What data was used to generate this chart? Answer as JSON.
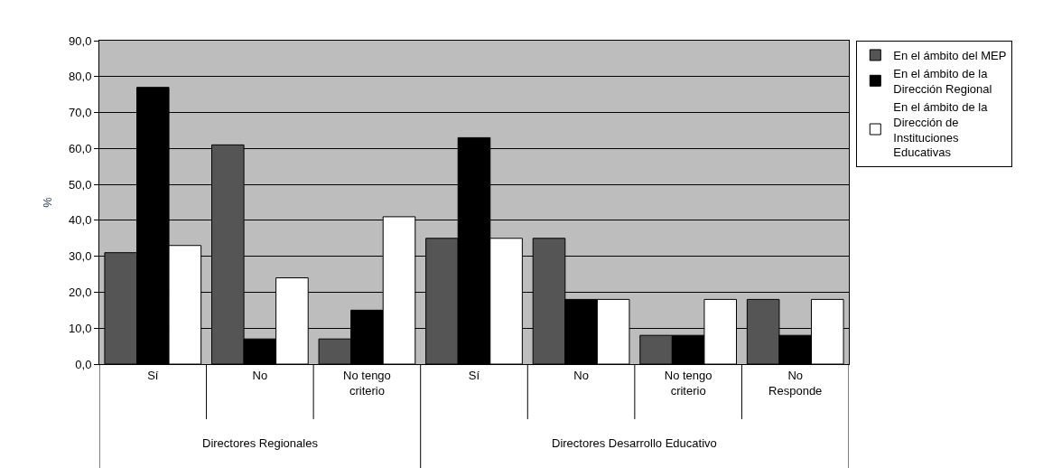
{
  "chart_data": {
    "type": "bar",
    "ylabel": "%",
    "categories": [
      "Sí",
      "No",
      "No tengo criterio",
      "Sí",
      "No",
      "No tengo criterio",
      "No Responde"
    ],
    "series": [
      {
        "name": "En el ámbito del MEP",
        "color": "#555555",
        "values": [
          31,
          61,
          7,
          35,
          35,
          8,
          18
        ]
      },
      {
        "name": "En el ámbito de la Dirección Regional",
        "color": "#000000",
        "values": [
          77,
          7,
          15,
          63,
          18,
          8,
          8
        ]
      },
      {
        "name": "En el ámbito de la Dirección de Instituciones Educativas",
        "color": "#ffffff",
        "values": [
          33,
          24,
          41,
          35,
          18,
          18,
          18
        ]
      }
    ],
    "annotations": [
      "Directores Regionales",
      "Directores Desarrollo Educativo"
    ],
    "ylim": [
      0,
      90
    ],
    "yticks": [
      {
        "value": 0,
        "label": "0,0"
      },
      {
        "value": 10,
        "label": "10,0"
      },
      {
        "value": 20,
        "label": "20,0"
      },
      {
        "value": 30,
        "label": "30,0"
      },
      {
        "value": 40,
        "label": "40,0"
      },
      {
        "value": 50,
        "label": "50,0"
      },
      {
        "value": 60,
        "label": "60,0"
      },
      {
        "value": 70,
        "label": "70,0"
      },
      {
        "value": 80,
        "label": "80,0"
      },
      {
        "value": 90,
        "label": "90,0"
      }
    ],
    "grid": "y",
    "legend": "right"
  }
}
